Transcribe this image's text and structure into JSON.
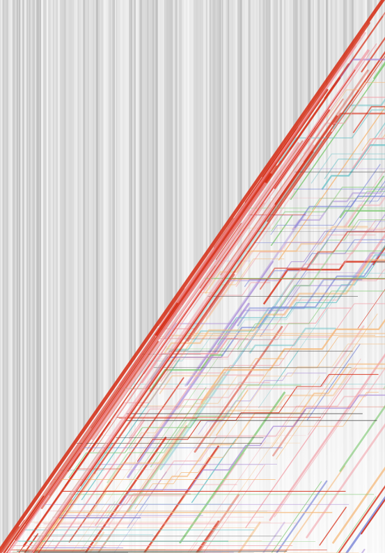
{
  "artwork": {
    "description_free": true,
    "palette": {
      "background_light": "#f4f4f4",
      "background_mid": "#d6d6d6",
      "background_dark": "#bdbdbd",
      "primary_red": "#d62a12",
      "pink": "#f2a0a8",
      "orange": "#f5b878",
      "blue": "#7a86d8",
      "green": "#7cc870",
      "purple": "#a88ad8",
      "teal": "#6cc4c8",
      "dark": "#3a3a3a"
    },
    "stripe_count": 260,
    "diagonal_line_count": 140,
    "staircase_line_count": 70,
    "horizontal_trace_count": 90,
    "seed": 7
  }
}
